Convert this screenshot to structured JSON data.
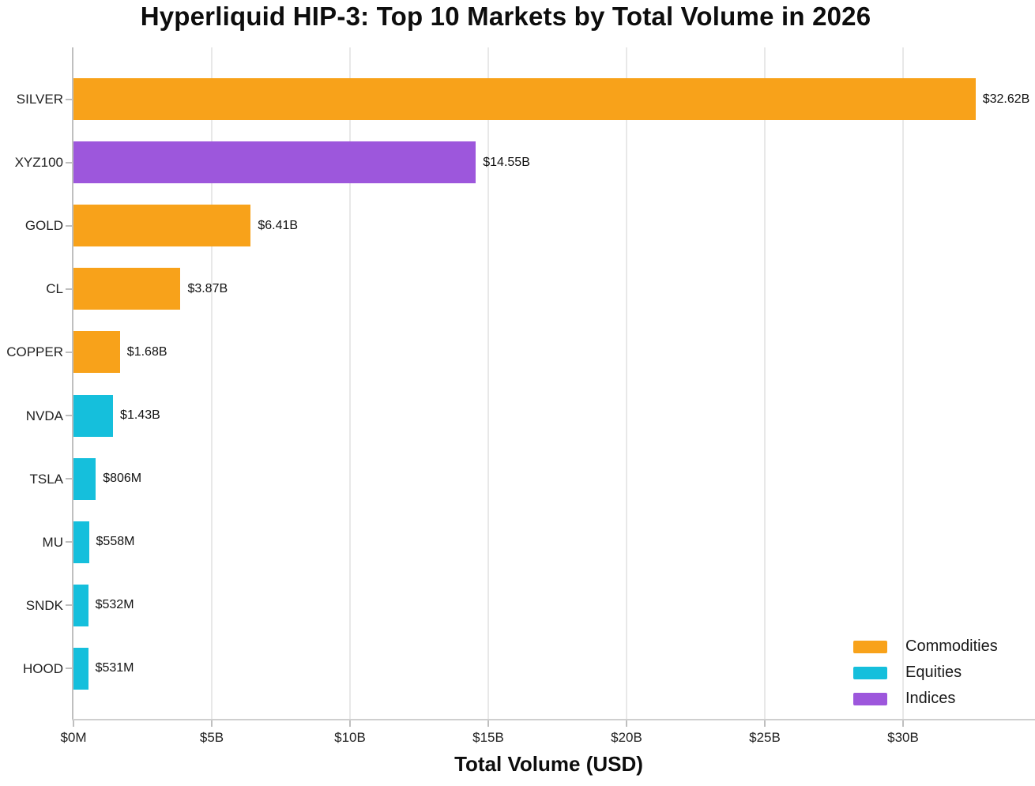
{
  "chart_data": {
    "type": "bar",
    "orientation": "horizontal",
    "title": "Hyperliquid HIP-3: Top 10 Markets by Total Volume in 2026",
    "xlabel": "Total Volume (USD)",
    "ylabel": "",
    "categories": [
      "SILVER",
      "XYZ100",
      "GOLD",
      "CL",
      "COPPER",
      "NVDA",
      "TSLA",
      "MU",
      "SNDK",
      "HOOD"
    ],
    "values_usd_billion": [
      32.62,
      14.55,
      6.41,
      3.87,
      1.68,
      1.43,
      0.806,
      0.558,
      0.532,
      0.531
    ],
    "value_labels": [
      "$32.62B",
      "$14.55B",
      "$6.41B",
      "$3.87B",
      "$1.68B",
      "$1.43B",
      "$806M",
      "$558M",
      "$532M",
      "$531M"
    ],
    "groups": [
      "Commodities",
      "Indices",
      "Commodities",
      "Commodities",
      "Commodities",
      "Equities",
      "Equities",
      "Equities",
      "Equities",
      "Equities"
    ],
    "group_colors": {
      "Commodities": "#F8A21A",
      "Equities": "#15BFDC",
      "Indices": "#9D57DC"
    },
    "xlim_billion": [
      0,
      34.8
    ],
    "x_ticks": [
      {
        "value": 0,
        "label": "$0M"
      },
      {
        "value": 5,
        "label": "$5B"
      },
      {
        "value": 10,
        "label": "$10B"
      },
      {
        "value": 15,
        "label": "$15B"
      },
      {
        "value": 20,
        "label": "$20B"
      },
      {
        "value": 25,
        "label": "$25B"
      },
      {
        "value": 30,
        "label": "$30B"
      }
    ],
    "grid": "vertical-light",
    "legend": {
      "position": "lower-right",
      "entries": [
        {
          "label": "Commodities",
          "color": "#F8A21A"
        },
        {
          "label": "Equities",
          "color": "#15BFDC"
        },
        {
          "label": "Indices",
          "color": "#9D57DC"
        }
      ]
    },
    "colors": {
      "background": "#ffffff",
      "grid": "#e8e8e8",
      "axis": "#bfbfbf",
      "text": "#111111"
    }
  }
}
